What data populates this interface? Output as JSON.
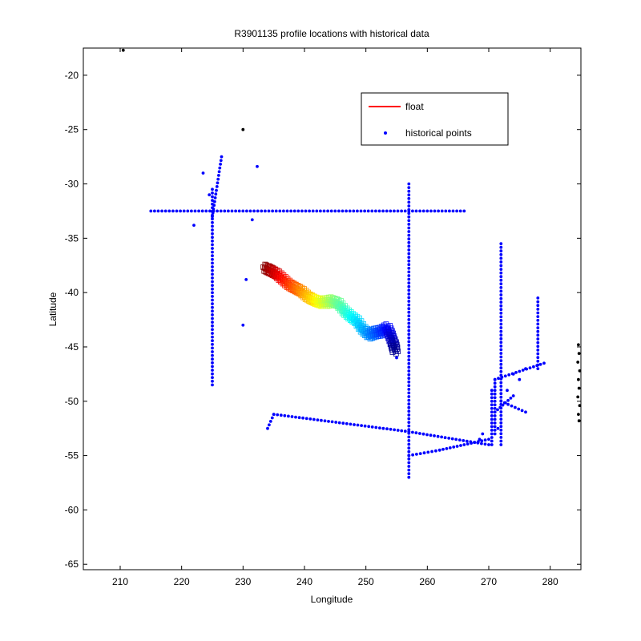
{
  "chart_data": {
    "type": "scatter",
    "title": "R3901135 profile locations with historical data",
    "xlabel": "Longitude",
    "ylabel": "Latitude",
    "xlim": [
      204,
      285
    ],
    "ylim": [
      -65.5,
      -17.5
    ],
    "xticks": [
      210,
      220,
      230,
      240,
      250,
      260,
      270,
      280
    ],
    "yticks": [
      -20,
      -25,
      -30,
      -35,
      -40,
      -45,
      -50,
      -55,
      -60,
      -65
    ],
    "grid": false,
    "legend_position": "top-right",
    "legend": [
      {
        "label": "float",
        "color": "#ff0000",
        "marker": "line"
      },
      {
        "label": "historical points",
        "color": "#0000ff",
        "marker": "dot"
      }
    ],
    "historical_lines": [
      [
        [
          215,
          -32.5
        ],
        [
          266,
          -32.5
        ]
      ],
      [
        [
          225,
          -30.5
        ],
        [
          225,
          -48.5
        ]
      ],
      [
        [
          226.5,
          -27.5
        ],
        [
          225,
          -33
        ]
      ],
      [
        [
          257,
          -30
        ],
        [
          257,
          -57
        ]
      ],
      [
        [
          272,
          -35.5
        ],
        [
          272,
          -54
        ]
      ],
      [
        [
          270.5,
          -54
        ],
        [
          270.5,
          -49
        ]
      ],
      [
        [
          271,
          -53
        ],
        [
          271,
          -48
        ]
      ],
      [
        [
          278,
          -40.5
        ],
        [
          278,
          -47
        ]
      ],
      [
        [
          234,
          -52.5
        ],
        [
          235,
          -51.2
        ]
      ],
      [
        [
          235,
          -51.2
        ],
        [
          257,
          -52.8
        ]
      ],
      [
        [
          257,
          -52.8
        ],
        [
          270,
          -54
        ]
      ],
      [
        [
          257,
          -55
        ],
        [
          262,
          -54.5
        ]
      ],
      [
        [
          262,
          -54.5
        ],
        [
          270,
          -53.5
        ]
      ],
      [
        [
          271,
          -48
        ],
        [
          279,
          -46.5
        ]
      ],
      [
        [
          272,
          -50
        ],
        [
          276,
          -51
        ]
      ],
      [
        [
          271,
          -51
        ],
        [
          274,
          -49.5
        ]
      ]
    ],
    "historical_points": [
      [
        223.5,
        -29
      ],
      [
        224.5,
        -31
      ],
      [
        222,
        -33.8
      ],
      [
        230,
        -43
      ],
      [
        230.5,
        -38.8
      ],
      [
        231.5,
        -33.3
      ],
      [
        232.3,
        -28.4
      ],
      [
        275,
        -48
      ],
      [
        273,
        -49
      ],
      [
        271.5,
        -52.5
      ],
      [
        274,
        -47.5
      ],
      [
        276,
        -47
      ],
      [
        269,
        -53
      ],
      [
        268.5,
        -53.5
      ],
      [
        255,
        -46
      ]
    ],
    "outlier_points_black": [
      [
        230,
        -25
      ],
      [
        210.5,
        -17.7
      ]
    ],
    "float_track": [
      [
        233.8,
        -37.8
      ],
      [
        234.5,
        -38.0
      ],
      [
        235.5,
        -38.3
      ],
      [
        236.5,
        -38.8
      ],
      [
        237.5,
        -39.3
      ],
      [
        238.5,
        -39.6
      ],
      [
        239.5,
        -39.9
      ],
      [
        240.5,
        -40.4
      ],
      [
        241.5,
        -40.7
      ],
      [
        242.5,
        -40.9
      ],
      [
        243.5,
        -40.9
      ],
      [
        244.5,
        -40.8
      ],
      [
        245.5,
        -41.0
      ],
      [
        246.5,
        -41.7
      ],
      [
        247.5,
        -42.2
      ],
      [
        248.5,
        -42.6
      ],
      [
        249.5,
        -43.4
      ],
      [
        250.5,
        -43.9
      ],
      [
        251.5,
        -43.7
      ],
      [
        252.5,
        -43.6
      ],
      [
        253.5,
        -43.3
      ],
      [
        254.0,
        -44.0
      ],
      [
        254.5,
        -44.8
      ],
      [
        254.8,
        -45.5
      ]
    ],
    "east_edge_black_points": [
      [
        284.6,
        -44.8
      ],
      [
        284.7,
        -45.6
      ],
      [
        284.5,
        -46.4
      ],
      [
        284.8,
        -47.2
      ],
      [
        284.6,
        -48.0
      ],
      [
        284.7,
        -48.8
      ],
      [
        284.5,
        -49.6
      ],
      [
        284.8,
        -50.4
      ],
      [
        284.6,
        -51.2
      ],
      [
        284.7,
        -51.8
      ]
    ]
  }
}
